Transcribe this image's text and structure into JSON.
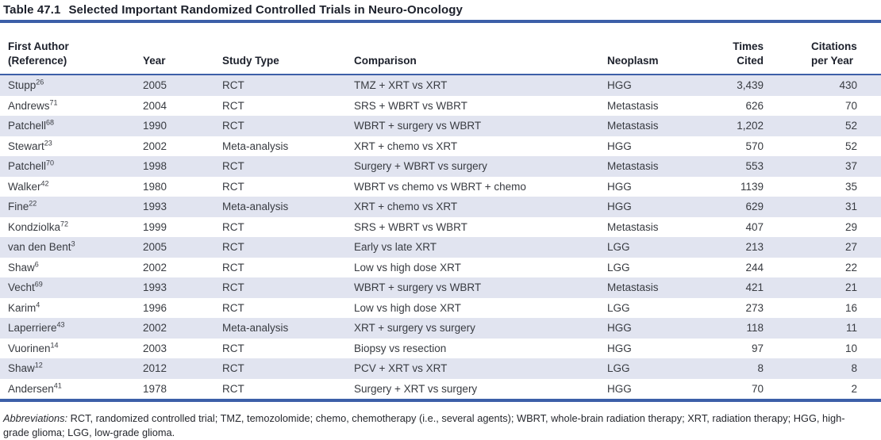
{
  "title": {
    "number": "Table 47.1",
    "text": "Selected Important Randomized Controlled Trials in Neuro-Oncology"
  },
  "table": {
    "columns": [
      {
        "id": "author",
        "line1": "First Author",
        "line2": "(Reference)"
      },
      {
        "id": "year",
        "line1": "Year"
      },
      {
        "id": "study_type",
        "line1": "Study Type"
      },
      {
        "id": "comparison",
        "line1": "Comparison"
      },
      {
        "id": "neoplasm",
        "line1": "Neoplasm"
      },
      {
        "id": "times_cited",
        "line1": "Times",
        "line2": "Cited"
      },
      {
        "id": "citations_per_year",
        "line1": "Citations",
        "line2": "per Year"
      }
    ],
    "rows": [
      {
        "author": "Stupp",
        "ref": "26",
        "year": "2005",
        "study_type": "RCT",
        "comparison": "TMZ + XRT vs XRT",
        "neoplasm": "HGG",
        "times_cited": "3,439",
        "citations_per_year": "430"
      },
      {
        "author": "Andrews",
        "ref": "71",
        "year": "2004",
        "study_type": "RCT",
        "comparison": "SRS + WBRT vs WBRT",
        "neoplasm": "Metastasis",
        "times_cited": "626",
        "citations_per_year": "70"
      },
      {
        "author": "Patchell",
        "ref": "68",
        "year": "1990",
        "study_type": "RCT",
        "comparison": "WBRT + surgery vs WBRT",
        "neoplasm": "Metastasis",
        "times_cited": "1,202",
        "citations_per_year": "52"
      },
      {
        "author": "Stewart",
        "ref": "23",
        "year": "2002",
        "study_type": "Meta-analysis",
        "comparison": "XRT + chemo vs XRT",
        "neoplasm": "HGG",
        "times_cited": "570",
        "citations_per_year": "52"
      },
      {
        "author": "Patchell",
        "ref": "70",
        "year": "1998",
        "study_type": "RCT",
        "comparison": "Surgery + WBRT vs surgery",
        "neoplasm": "Metastasis",
        "times_cited": "553",
        "citations_per_year": "37"
      },
      {
        "author": "Walker",
        "ref": "42",
        "year": "1980",
        "study_type": "RCT",
        "comparison": "WBRT vs chemo vs WBRT + chemo",
        "neoplasm": "HGG",
        "times_cited": "1139",
        "citations_per_year": "35"
      },
      {
        "author": "Fine",
        "ref": "22",
        "year": "1993",
        "study_type": "Meta-analysis",
        "comparison": "XRT + chemo vs XRT",
        "neoplasm": "HGG",
        "times_cited": "629",
        "citations_per_year": "31"
      },
      {
        "author": "Kondziolka",
        "ref": "72",
        "year": "1999",
        "study_type": "RCT",
        "comparison": "SRS + WBRT vs WBRT",
        "neoplasm": "Metastasis",
        "times_cited": "407",
        "citations_per_year": "29"
      },
      {
        "author": "van den Bent",
        "ref": "3",
        "year": "2005",
        "study_type": "RCT",
        "comparison": "Early vs late XRT",
        "neoplasm": "LGG",
        "times_cited": "213",
        "citations_per_year": "27"
      },
      {
        "author": "Shaw",
        "ref": "6",
        "year": "2002",
        "study_type": "RCT",
        "comparison": "Low vs high dose XRT",
        "neoplasm": "LGG",
        "times_cited": "244",
        "citations_per_year": "22"
      },
      {
        "author": "Vecht",
        "ref": "69",
        "year": "1993",
        "study_type": "RCT",
        "comparison": "WBRT + surgery vs WBRT",
        "neoplasm": "Metastasis",
        "times_cited": "421",
        "citations_per_year": "21"
      },
      {
        "author": "Karim",
        "ref": "4",
        "year": "1996",
        "study_type": "RCT",
        "comparison": "Low vs high dose XRT",
        "neoplasm": "LGG",
        "times_cited": "273",
        "citations_per_year": "16"
      },
      {
        "author": "Laperriere",
        "ref": "43",
        "year": "2002",
        "study_type": "Meta-analysis",
        "comparison": "XRT + surgery vs surgery",
        "neoplasm": "HGG",
        "times_cited": "118",
        "citations_per_year": "11"
      },
      {
        "author": "Vuorinen",
        "ref": "14",
        "year": "2003",
        "study_type": "RCT",
        "comparison": "Biopsy vs resection",
        "neoplasm": "HGG",
        "times_cited": "97",
        "citations_per_year": "10"
      },
      {
        "author": "Shaw",
        "ref": "12",
        "year": "2012",
        "study_type": "RCT",
        "comparison": "PCV + XRT vs XRT",
        "neoplasm": "LGG",
        "times_cited": "8",
        "citations_per_year": "8"
      },
      {
        "author": "Andersen",
        "ref": "41",
        "year": "1978",
        "study_type": "RCT",
        "comparison": "Surgery + XRT vs surgery",
        "neoplasm": "HGG",
        "times_cited": "70",
        "citations_per_year": "2"
      }
    ]
  },
  "footnote": {
    "label": "Abbreviations:",
    "text": " RCT, randomized controlled trial; TMZ, temozolomide; chemo, chemotherapy (i.e., several agents); WBRT, whole-brain radiation therapy; XRT, radiation therapy; HGG, high-grade glioma; LGG, low-grade glioma."
  },
  "colors": {
    "rule_blue": "#3c5fa8",
    "row_stripe": "#e1e4f0",
    "header_text": "#1c202b",
    "body_text": "#383b41"
  }
}
